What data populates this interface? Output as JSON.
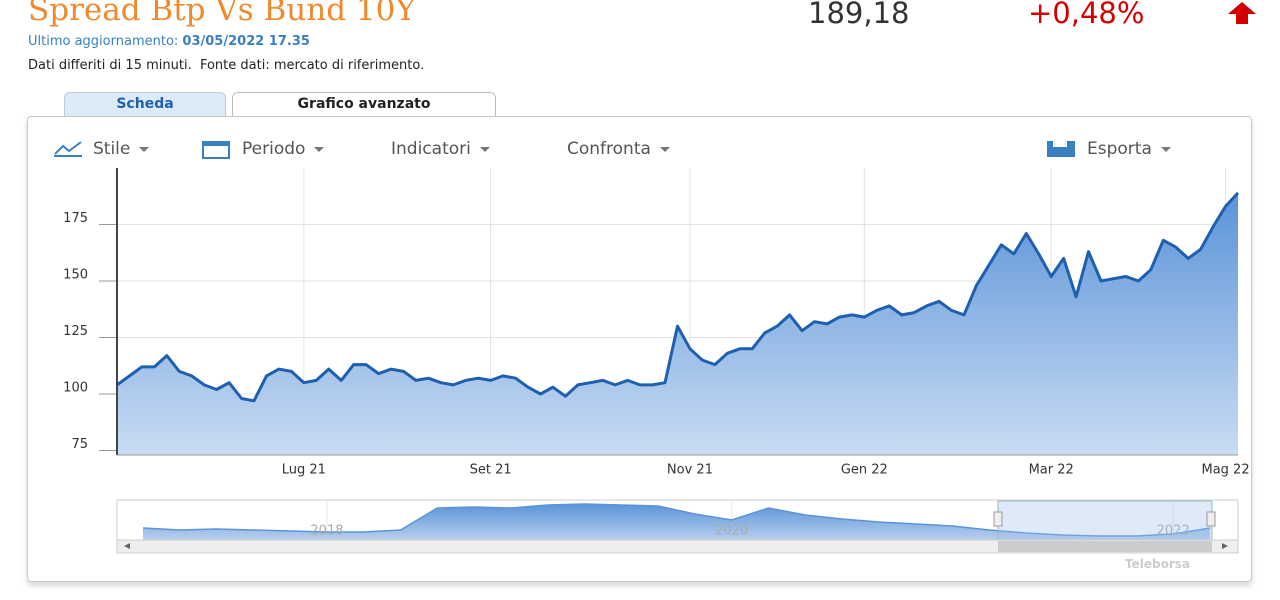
{
  "header": {
    "title": "Spread Btp Vs Bund 10Y",
    "last_value": "189,18",
    "change": "+0,48%",
    "updated_label": "Ultimo aggiornamento:",
    "updated_at": "03/05/2022 17.35",
    "note": "Dati differiti di 15 minuti.  Fonte dati: mercato di riferimento."
  },
  "tabs": [
    "Scheda",
    "Grafico avanzato"
  ],
  "toolbar": [
    "Stile",
    "Periodo",
    "Indicatori",
    "Confronta",
    "Esporta"
  ],
  "credit": "Teleborsa",
  "chart_data": [
    {
      "type": "line",
      "color": "#1f5fb0",
      "grid": true,
      "ylim": [
        73,
        200
      ],
      "yticks": [
        75,
        100,
        125,
        150,
        175
      ],
      "categories": [
        null,
        null,
        null,
        null,
        null,
        null,
        null,
        null,
        null,
        null,
        null,
        null,
        null,
        null,
        null,
        "Lug 21",
        null,
        null,
        null,
        null,
        null,
        null,
        null,
        null,
        null,
        null,
        null,
        null,
        null,
        null,
        "Set 21",
        null,
        null,
        null,
        null,
        null,
        null,
        null,
        null,
        null,
        null,
        null,
        null,
        null,
        null,
        null,
        "Nov 21",
        null,
        null,
        null,
        null,
        null,
        null,
        null,
        null,
        null,
        null,
        null,
        null,
        null,
        "Gen 22",
        null,
        null,
        null,
        null,
        null,
        null,
        null,
        null,
        null,
        null,
        null,
        null,
        null,
        null,
        "Mar 22",
        null,
        null,
        null,
        null,
        null,
        null,
        null,
        null,
        null,
        null,
        null,
        null,
        null,
        "Mag 22",
        null
      ],
      "values": [
        104,
        108,
        112,
        112,
        117,
        110,
        108,
        104,
        102,
        105,
        98,
        97,
        108,
        111,
        110,
        105,
        106,
        111,
        106,
        113,
        113,
        109,
        111,
        110,
        106,
        107,
        105,
        104,
        106,
        107,
        106,
        108,
        107,
        103,
        100,
        103,
        99,
        104,
        105,
        106,
        104,
        106,
        104,
        104,
        105,
        130,
        120,
        115,
        113,
        118,
        120,
        120,
        127,
        130,
        135,
        128,
        132,
        131,
        134,
        135,
        134,
        137,
        139,
        135,
        136,
        139,
        141,
        137,
        135,
        148,
        157,
        166,
        162,
        171,
        162,
        152,
        160,
        143,
        163,
        150,
        151,
        152,
        150,
        155,
        168,
        165,
        160,
        164,
        174,
        183,
        189
      ]
    },
    {
      "type": "area",
      "color": "#5b93d8",
      "categories": [
        null,
        null,
        null,
        null,
        null,
        "2018",
        null,
        null,
        null,
        null,
        null,
        null,
        null,
        null,
        null,
        null,
        "2020",
        null,
        null,
        null,
        null,
        null,
        null,
        null,
        null,
        null,
        null,
        null,
        "2022",
        null
      ],
      "values": [
        150,
        140,
        145,
        140,
        135,
        130,
        130,
        140,
        250,
        255,
        250,
        265,
        270,
        265,
        260,
        220,
        190,
        250,
        215,
        195,
        180,
        170,
        160,
        140,
        125,
        115,
        110,
        110,
        120,
        150
      ]
    }
  ]
}
